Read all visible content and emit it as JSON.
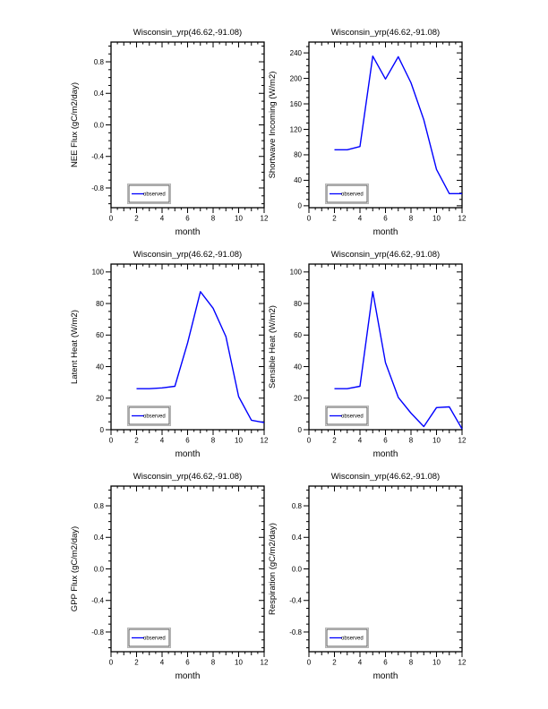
{
  "page": {
    "background": "#ffffff"
  },
  "line_color": "#0000ff",
  "axis_color": "#000000",
  "legend": {
    "label": "observed",
    "box_border": "#555555",
    "box_outer_border": "#b5b5b5",
    "box_fill": "#ffffff"
  },
  "chart_data": [
    {
      "id": "nee-flux",
      "type": "line",
      "title": "Wisconsin_yrp(46.62,-91.08)",
      "xlabel": "month",
      "ylabel": "NEE Flux (gC/m2/day)",
      "x_range": [
        0,
        12
      ],
      "x_major_ticks": [
        0,
        2,
        4,
        6,
        8,
        10,
        12
      ],
      "y_range": [
        -1.05,
        1.05
      ],
      "y_ticks": [
        -0.8,
        -0.4,
        0.0,
        0.4,
        0.8
      ],
      "y_tick_labels": [
        "-0.8",
        "-0.4",
        "0.0",
        "0.4",
        "0.8"
      ],
      "y_minor_step": 0.1,
      "legend_label": "observed",
      "series": []
    },
    {
      "id": "shortwave-incoming",
      "type": "line",
      "title": "Wisconsin_yrp(46.62,-91.08)",
      "xlabel": "month",
      "ylabel": "Shortwave Incoming (W/m2)",
      "x_range": [
        0,
        12
      ],
      "x_major_ticks": [
        0,
        2,
        4,
        6,
        8,
        10,
        12
      ],
      "y_range": [
        -3,
        257
      ],
      "y_ticks": [
        0,
        40,
        80,
        120,
        160,
        200,
        240
      ],
      "y_tick_labels": [
        "0",
        "40",
        "80",
        "120",
        "160",
        "200",
        "240"
      ],
      "y_minor_step": 10,
      "legend_label": "observed",
      "series": [
        {
          "name": "observed",
          "x": [
            2,
            3,
            4,
            5,
            6,
            7,
            8,
            9,
            10,
            11,
            12
          ],
          "y": [
            88,
            88,
            93,
            235,
            199,
            234,
            193,
            135,
            57,
            19,
            19
          ]
        }
      ]
    },
    {
      "id": "latent-heat",
      "type": "line",
      "title": "Wisconsin_yrp(46.62,-91.08)",
      "xlabel": "month",
      "ylabel": "Latent Heat (W/m2)",
      "x_range": [
        0,
        12
      ],
      "x_major_ticks": [
        0,
        2,
        4,
        6,
        8,
        10,
        12
      ],
      "y_range": [
        0,
        105
      ],
      "y_ticks": [
        0,
        20,
        40,
        60,
        80,
        100
      ],
      "y_tick_labels": [
        "0",
        "20",
        "40",
        "60",
        "80",
        "100"
      ],
      "y_minor_step": 5,
      "legend_label": "observed",
      "series": [
        {
          "name": "observed",
          "x": [
            2,
            3,
            4,
            5,
            6,
            7,
            8,
            9,
            10,
            11,
            12
          ],
          "y": [
            26,
            26,
            26.5,
            27.5,
            55,
            87.5,
            77,
            59,
            21,
            6,
            4.5
          ]
        }
      ]
    },
    {
      "id": "sensible-heat",
      "type": "line",
      "title": "Wisconsin_yrp(46.62,-91.08)",
      "xlabel": "month",
      "ylabel": "Sensible Heat (W/m2)",
      "x_range": [
        0,
        12
      ],
      "x_major_ticks": [
        0,
        2,
        4,
        6,
        8,
        10,
        12
      ],
      "y_range": [
        0,
        105
      ],
      "y_ticks": [
        0,
        20,
        40,
        60,
        80,
        100
      ],
      "y_tick_labels": [
        "0",
        "20",
        "40",
        "60",
        "80",
        "100"
      ],
      "y_minor_step": 5,
      "legend_label": "observed",
      "series": [
        {
          "name": "observed",
          "x": [
            2,
            3,
            4,
            5,
            6,
            7,
            8,
            9,
            10,
            11,
            12
          ],
          "y": [
            26,
            26,
            27.5,
            87.5,
            42.5,
            20.5,
            10.5,
            2,
            14,
            14.5,
            0.5
          ]
        }
      ]
    },
    {
      "id": "gpp-flux",
      "type": "line",
      "title": "Wisconsin_yrp(46.62,-91.08)",
      "xlabel": "month",
      "ylabel": "GPP Flux (gC/m2/day)",
      "x_range": [
        0,
        12
      ],
      "x_major_ticks": [
        0,
        2,
        4,
        6,
        8,
        10,
        12
      ],
      "y_range": [
        -1.05,
        1.05
      ],
      "y_ticks": [
        -0.8,
        -0.4,
        0.0,
        0.4,
        0.8
      ],
      "y_tick_labels": [
        "-0.8",
        "-0.4",
        "0.0",
        "0.4",
        "0.8"
      ],
      "y_minor_step": 0.1,
      "legend_label": "observed",
      "series": []
    },
    {
      "id": "respiration",
      "type": "line",
      "title": "Wisconsin_yrp(46.62,-91.08)",
      "xlabel": "month",
      "ylabel": "Respiration (gC/m2/day)",
      "x_range": [
        0,
        12
      ],
      "x_major_ticks": [
        0,
        2,
        4,
        6,
        8,
        10,
        12
      ],
      "y_range": [
        -1.05,
        1.05
      ],
      "y_ticks": [
        -0.8,
        -0.4,
        0.0,
        0.4,
        0.8
      ],
      "y_tick_labels": [
        "-0.8",
        "-0.4",
        "0.0",
        "0.4",
        "0.8"
      ],
      "y_minor_step": 0.1,
      "legend_label": "observed",
      "series": []
    }
  ]
}
